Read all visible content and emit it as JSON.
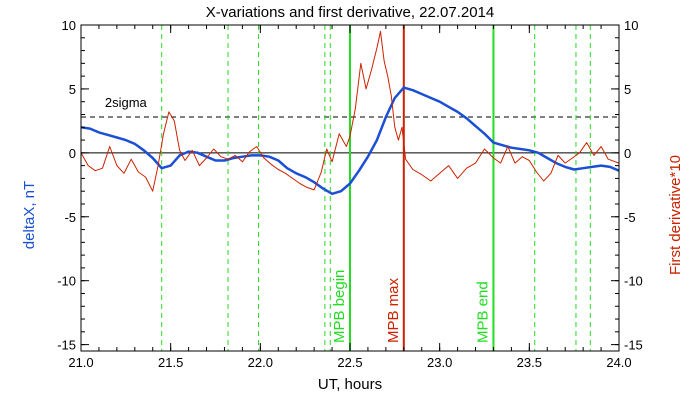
{
  "chart_data": {
    "type": "line",
    "title": "X-variations and first derivative, 22.07.2014",
    "xlabel": "UT, hours",
    "ylabel_left": "deltaX, nT",
    "ylabel_right": "First derivative*10",
    "xlim": [
      21.0,
      24.0
    ],
    "ylim": [
      -15.5,
      10.0
    ],
    "x_ticks": [
      21.0,
      21.5,
      22.0,
      22.5,
      23.0,
      23.5,
      24.0
    ],
    "x_tick_labels": [
      "21.0",
      "21.5",
      "22.0",
      "22.5",
      "23.0",
      "23.5",
      "24.0"
    ],
    "y_ticks": [
      10,
      5,
      0,
      -5,
      -10,
      -15
    ],
    "y_tick_labels": [
      "10",
      "5",
      "0",
      "-5",
      "-10",
      "-15"
    ],
    "colors": {
      "deltaX": "#1a4fd6",
      "derivative": "#cc2200",
      "markers": "#22dd22",
      "mpb_max": "#cc2200",
      "sigma": "#000000",
      "zero": "#000000"
    },
    "sigma": {
      "value": 2.8,
      "label": "2sigma"
    },
    "dashed_markers_x": [
      21.45,
      21.82,
      21.99,
      22.36,
      22.39,
      23.53,
      23.76,
      23.84
    ],
    "solid_markers": [
      {
        "x": 22.5,
        "label": "MPB begin",
        "color": "#22dd22"
      },
      {
        "x": 22.8,
        "label": "MPB max",
        "color": "#cc2200"
      },
      {
        "x": 23.3,
        "label": "MPB end",
        "color": "#22dd22"
      }
    ],
    "series": [
      {
        "color": "#1a4fd6",
        "x": [
          21.0,
          21.05,
          21.1,
          21.15,
          21.2,
          21.25,
          21.3,
          21.35,
          21.4,
          21.45,
          21.5,
          21.55,
          21.6,
          21.65,
          21.7,
          21.75,
          21.8,
          21.85,
          21.9,
          21.95,
          22.0,
          22.05,
          22.1,
          22.15,
          22.2,
          22.25,
          22.3,
          22.35,
          22.4,
          22.45,
          22.5,
          22.55,
          22.6,
          22.65,
          22.7,
          22.75,
          22.8,
          22.85,
          22.9,
          22.95,
          23.0,
          23.05,
          23.1,
          23.15,
          23.2,
          23.25,
          23.3,
          23.35,
          23.4,
          23.45,
          23.5,
          23.55,
          23.6,
          23.65,
          23.7,
          23.75,
          23.8,
          23.85,
          23.9,
          23.95,
          24.0
        ],
        "values": [
          2.0,
          1.9,
          1.6,
          1.4,
          1.2,
          1.0,
          0.7,
          0.2,
          -0.4,
          -1.2,
          -1.0,
          -0.2,
          0.1,
          0.0,
          -0.3,
          -0.6,
          -0.6,
          -0.4,
          -0.3,
          -0.2,
          -0.2,
          -0.3,
          -0.6,
          -1.2,
          -1.6,
          -1.9,
          -2.3,
          -2.8,
          -3.2,
          -3.0,
          -2.4,
          -1.4,
          -0.3,
          1.0,
          2.8,
          4.3,
          5.1,
          4.9,
          4.6,
          4.3,
          4.0,
          3.6,
          3.2,
          2.7,
          2.1,
          1.5,
          0.8,
          0.6,
          0.4,
          0.3,
          0.2,
          0.0,
          -0.4,
          -0.8,
          -1.1,
          -1.3,
          -1.2,
          -1.1,
          -1.0,
          -1.1,
          -1.4
        ]
      },
      {
        "color": "#cc2200",
        "x": [
          21.0,
          21.04,
          21.08,
          21.12,
          21.16,
          21.2,
          21.24,
          21.28,
          21.32,
          21.36,
          21.4,
          21.43,
          21.46,
          21.49,
          21.52,
          21.55,
          21.58,
          21.62,
          21.66,
          21.7,
          21.74,
          21.78,
          21.82,
          21.86,
          21.9,
          21.94,
          21.98,
          22.02,
          22.06,
          22.1,
          22.14,
          22.18,
          22.22,
          22.26,
          22.3,
          22.34,
          22.37,
          22.4,
          22.44,
          22.48,
          22.5,
          22.53,
          22.56,
          22.59,
          22.62,
          22.65,
          22.67,
          22.69,
          22.71,
          22.73,
          22.75,
          22.77,
          22.79,
          22.81,
          22.85,
          22.9,
          22.95,
          23.0,
          23.05,
          23.1,
          23.15,
          23.2,
          23.25,
          23.3,
          23.34,
          23.38,
          23.42,
          23.46,
          23.5,
          23.54,
          23.58,
          23.62,
          23.66,
          23.7,
          23.74,
          23.78,
          23.82,
          23.86,
          23.9,
          23.94,
          24.0
        ],
        "values": [
          0.0,
          -1.0,
          -1.4,
          -1.2,
          0.5,
          -1.0,
          -1.6,
          -0.5,
          -1.5,
          -1.9,
          -3.0,
          -1.0,
          1.5,
          3.2,
          2.5,
          0.2,
          -0.6,
          0.2,
          -1.0,
          -0.4,
          0.3,
          -0.3,
          -0.5,
          -0.2,
          -0.7,
          0.1,
          0.5,
          -0.4,
          -0.9,
          -1.3,
          -1.6,
          -2.0,
          -2.4,
          -2.7,
          -2.9,
          -1.5,
          0.3,
          -0.7,
          1.5,
          0.5,
          1.3,
          3.5,
          7.0,
          5.0,
          6.5,
          8.2,
          9.5,
          7.2,
          6.0,
          4.5,
          2.0,
          1.0,
          2.0,
          -0.5,
          -1.3,
          -1.7,
          -2.2,
          -1.6,
          -1.0,
          -2.0,
          -1.2,
          -0.8,
          0.3,
          -0.4,
          -0.8,
          0.5,
          -0.8,
          -0.3,
          -0.6,
          -1.5,
          -2.2,
          -1.6,
          -0.2,
          -0.8,
          -0.4,
          0.0,
          0.8,
          -0.2,
          0.5,
          -0.5,
          -0.8
        ]
      }
    ]
  }
}
